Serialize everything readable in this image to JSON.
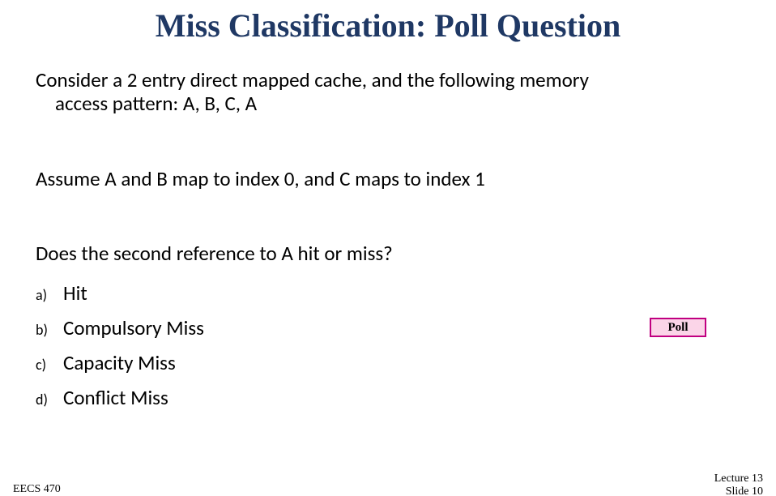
{
  "title": "Miss Classification: Poll Question",
  "paragraphs": {
    "p1_line1": "Consider a 2 entry direct mapped cache, and the following memory",
    "p1_line2": "access pattern: A, B, C, A",
    "p2": "Assume A and B map to index 0, and C maps to index 1",
    "p3": "Does the second reference to A hit or miss?"
  },
  "options": [
    {
      "letter": "a)",
      "text": "Hit"
    },
    {
      "letter": "b)",
      "text": "Compulsory Miss"
    },
    {
      "letter": "c)",
      "text": "Capacity Miss"
    },
    {
      "letter": "d)",
      "text": "Conflict Miss"
    }
  ],
  "poll_button": {
    "label": "Poll",
    "bg_color": "#fbd5e8",
    "border_color": "#c00080"
  },
  "footer": {
    "left": "EECS 470",
    "right_line1": "Lecture 13",
    "right_line2": "Slide 10"
  },
  "colors": {
    "title_color": "#1f3864",
    "body_color": "#000000",
    "background": "#ffffff"
  },
  "fonts": {
    "title_font": "Comic Sans MS",
    "body_font": "Calibri",
    "title_size_pt": 40,
    "body_size_pt": 25,
    "option_letter_size_pt": 18,
    "footer_size_pt": 14
  }
}
